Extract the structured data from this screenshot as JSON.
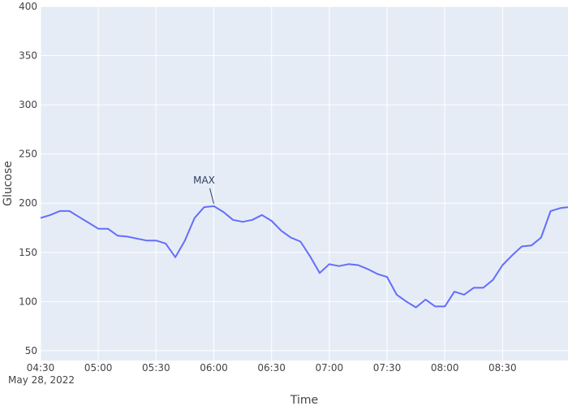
{
  "chart_data": {
    "type": "line",
    "xlabel": "Time",
    "ylabel": "Glucose",
    "date_label": "May 28, 2022",
    "xlim": [
      "04:30",
      "09:04"
    ],
    "ylim": [
      40,
      400
    ],
    "grid": true,
    "colors": {
      "line": "#636efa",
      "plot_bg": "#e5ecf6",
      "grid": "#ffffff"
    },
    "x_ticks": [
      "04:30",
      "05:00",
      "05:30",
      "06:00",
      "06:30",
      "07:00",
      "07:30",
      "08:00",
      "08:30"
    ],
    "y_ticks": [
      50,
      100,
      150,
      200,
      250,
      300,
      350,
      400
    ],
    "series": [
      {
        "x": [
          "04:30",
          "04:35",
          "04:40",
          "04:45",
          "04:50",
          "04:55",
          "05:00",
          "05:05",
          "05:10",
          "05:15",
          "05:20",
          "05:25",
          "05:30",
          "05:35",
          "05:40",
          "05:45",
          "05:50",
          "05:55",
          "06:00",
          "06:05",
          "06:10",
          "06:15",
          "06:20",
          "06:25",
          "06:30",
          "06:35",
          "06:40",
          "06:45",
          "06:50",
          "06:55",
          "07:00",
          "07:05",
          "07:10",
          "07:15",
          "07:20",
          "07:25",
          "07:30",
          "07:35",
          "07:40",
          "07:45",
          "07:50",
          "07:55",
          "08:00",
          "08:05",
          "08:10",
          "08:15",
          "08:20",
          "08:25",
          "08:30",
          "08:35",
          "08:40",
          "08:45",
          "08:50",
          "08:55",
          "09:00",
          "09:04"
        ],
        "y": [
          185,
          188,
          192,
          192,
          186,
          180,
          174,
          174,
          167,
          166,
          164,
          162,
          162,
          159,
          145,
          162,
          185,
          196,
          197,
          191,
          183,
          181,
          183,
          188,
          182,
          172,
          165,
          161,
          146,
          129,
          138,
          136,
          138,
          137,
          133,
          128,
          125,
          107,
          100,
          94,
          102,
          95,
          95,
          110,
          107,
          114,
          114,
          122,
          137,
          147,
          156,
          157,
          165,
          192,
          195,
          196
        ]
      }
    ],
    "annotations": [
      {
        "text": "MAX",
        "x": "06:00",
        "y": 197
      }
    ]
  }
}
